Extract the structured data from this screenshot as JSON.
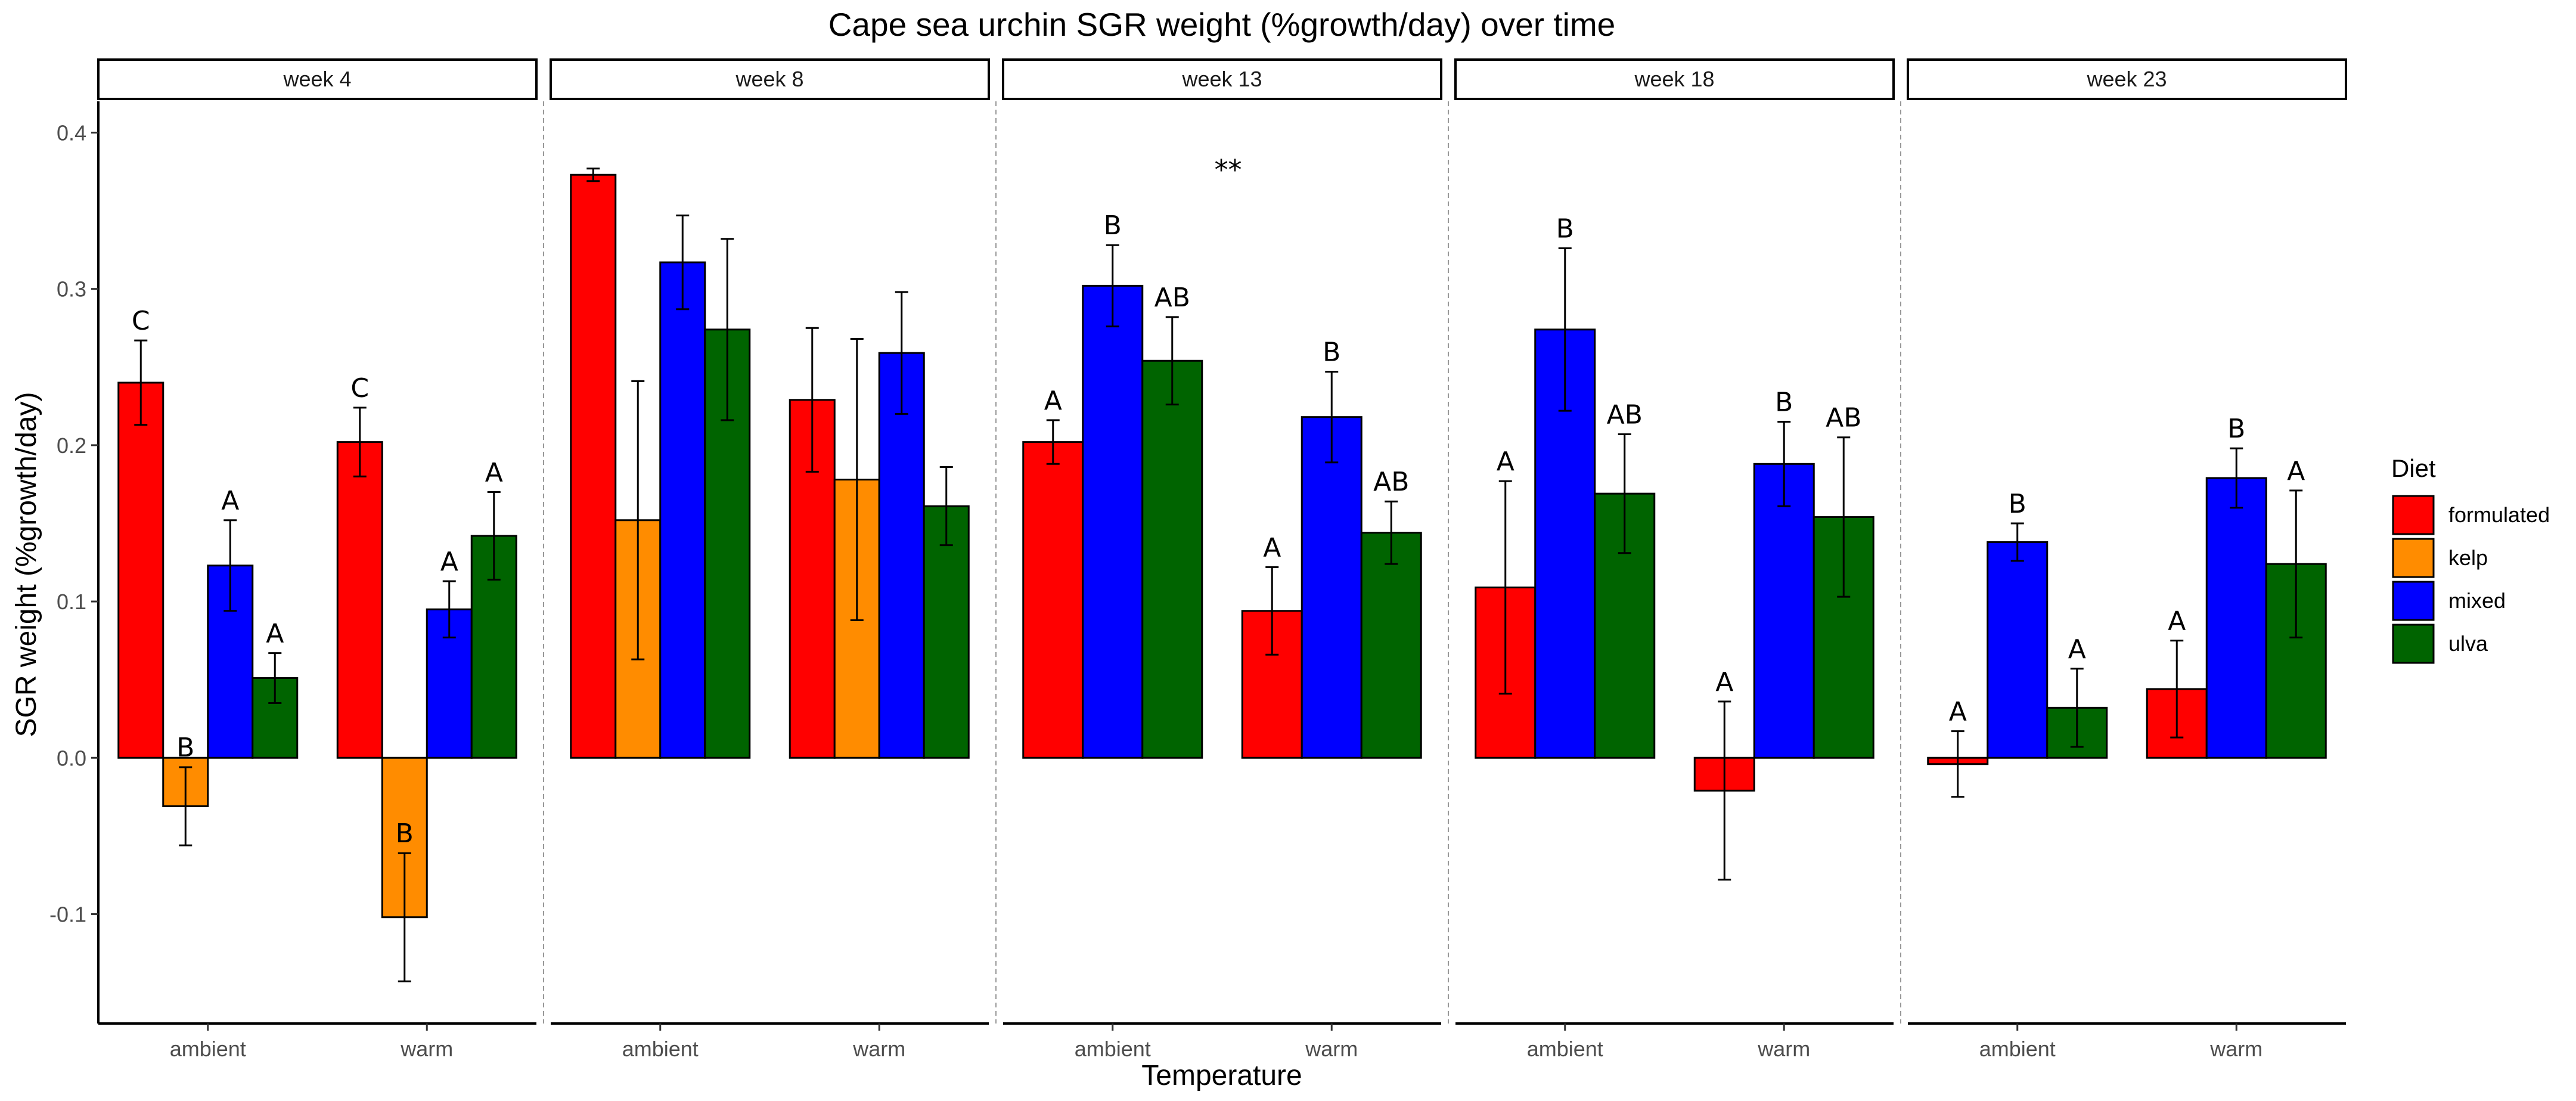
{
  "chart_data": {
    "type": "bar",
    "title": "Cape sea urchin SGR weight (%growth/day) over time",
    "xlabel": "Temperature",
    "ylabel": "SGR weight (%growth/day)",
    "ylim": [
      -0.17,
      0.42
    ],
    "yticks": [
      -0.1,
      0.0,
      0.1,
      0.2,
      0.3,
      0.4
    ],
    "ytick_labels": [
      "-0.1",
      "0.0",
      "0.1",
      "0.2",
      "0.3",
      "0.4"
    ],
    "categories": [
      "ambient",
      "warm"
    ],
    "diets": [
      "formulated",
      "kelp",
      "mixed",
      "ulva"
    ],
    "colors": {
      "formulated": "#ff0000",
      "kelp": "#ff8c00",
      "mixed": "#0000ff",
      "ulva": "#006400"
    },
    "legend": {
      "title": "Diet",
      "entries": [
        "formulated",
        "kelp",
        "mixed",
        "ulva"
      ],
      "position": "right"
    },
    "grid": false,
    "panels": [
      {
        "label": "week 4",
        "annotation": "",
        "groups": [
          {
            "temperature": "ambient",
            "bars": [
              {
                "diet": "formulated",
                "value": 0.24,
                "err": 0.027,
                "letter": "C"
              },
              {
                "diet": "kelp",
                "value": -0.031,
                "err": 0.025,
                "letter": "B"
              },
              {
                "diet": "mixed",
                "value": 0.123,
                "err": 0.029,
                "letter": "A"
              },
              {
                "diet": "ulva",
                "value": 0.051,
                "err": 0.016,
                "letter": "A"
              }
            ]
          },
          {
            "temperature": "warm",
            "bars": [
              {
                "diet": "formulated",
                "value": 0.202,
                "err": 0.022,
                "letter": "C"
              },
              {
                "diet": "kelp",
                "value": -0.102,
                "err": 0.041,
                "letter": "B"
              },
              {
                "diet": "mixed",
                "value": 0.095,
                "err": 0.018,
                "letter": "A"
              },
              {
                "diet": "ulva",
                "value": 0.142,
                "err": 0.028,
                "letter": "A"
              }
            ]
          }
        ]
      },
      {
        "label": "week 8",
        "annotation": "",
        "groups": [
          {
            "temperature": "ambient",
            "bars": [
              {
                "diet": "formulated",
                "value": 0.373,
                "err": 0.004,
                "letter": ""
              },
              {
                "diet": "kelp",
                "value": 0.152,
                "err": 0.089,
                "letter": ""
              },
              {
                "diet": "mixed",
                "value": 0.317,
                "err": 0.03,
                "letter": ""
              },
              {
                "diet": "ulva",
                "value": 0.274,
                "err": 0.058,
                "letter": ""
              }
            ]
          },
          {
            "temperature": "warm",
            "bars": [
              {
                "diet": "formulated",
                "value": 0.229,
                "err": 0.046,
                "letter": ""
              },
              {
                "diet": "kelp",
                "value": 0.178,
                "err": 0.09,
                "letter": ""
              },
              {
                "diet": "mixed",
                "value": 0.259,
                "err": 0.039,
                "letter": ""
              },
              {
                "diet": "ulva",
                "value": 0.161,
                "err": 0.025,
                "letter": ""
              }
            ]
          }
        ]
      },
      {
        "label": "week 13",
        "annotation": "**",
        "groups": [
          {
            "temperature": "ambient",
            "bars": [
              {
                "diet": "formulated",
                "value": 0.202,
                "err": 0.014,
                "letter": "A"
              },
              {
                "diet": "mixed",
                "value": 0.302,
                "err": 0.026,
                "letter": "B"
              },
              {
                "diet": "ulva",
                "value": 0.254,
                "err": 0.028,
                "letter": "AB"
              }
            ]
          },
          {
            "temperature": "warm",
            "bars": [
              {
                "diet": "formulated",
                "value": 0.094,
                "err": 0.028,
                "letter": "A"
              },
              {
                "diet": "mixed",
                "value": 0.218,
                "err": 0.029,
                "letter": "B"
              },
              {
                "diet": "ulva",
                "value": 0.144,
                "err": 0.02,
                "letter": "AB"
              }
            ]
          }
        ]
      },
      {
        "label": "week 18",
        "annotation": "",
        "groups": [
          {
            "temperature": "ambient",
            "bars": [
              {
                "diet": "formulated",
                "value": 0.109,
                "err": 0.068,
                "letter": "A"
              },
              {
                "diet": "mixed",
                "value": 0.274,
                "err": 0.052,
                "letter": "B"
              },
              {
                "diet": "ulva",
                "value": 0.169,
                "err": 0.038,
                "letter": "AB"
              }
            ]
          },
          {
            "temperature": "warm",
            "bars": [
              {
                "diet": "formulated",
                "value": -0.021,
                "err": 0.057,
                "letter": "A"
              },
              {
                "diet": "mixed",
                "value": 0.188,
                "err": 0.027,
                "letter": "B"
              },
              {
                "diet": "ulva",
                "value": 0.154,
                "err": 0.051,
                "letter": "AB"
              }
            ]
          }
        ]
      },
      {
        "label": "week 23",
        "annotation": "",
        "groups": [
          {
            "temperature": "ambient",
            "bars": [
              {
                "diet": "formulated",
                "value": -0.004,
                "err": 0.021,
                "letter": "A"
              },
              {
                "diet": "mixed",
                "value": 0.138,
                "err": 0.012,
                "letter": "B"
              },
              {
                "diet": "ulva",
                "value": 0.032,
                "err": 0.025,
                "letter": "A"
              }
            ]
          },
          {
            "temperature": "warm",
            "bars": [
              {
                "diet": "formulated",
                "value": 0.044,
                "err": 0.031,
                "letter": "A"
              },
              {
                "diet": "mixed",
                "value": 0.179,
                "err": 0.019,
                "letter": "B"
              },
              {
                "diet": "ulva",
                "value": 0.124,
                "err": 0.047,
                "letter": "A"
              }
            ]
          }
        ]
      }
    ]
  }
}
